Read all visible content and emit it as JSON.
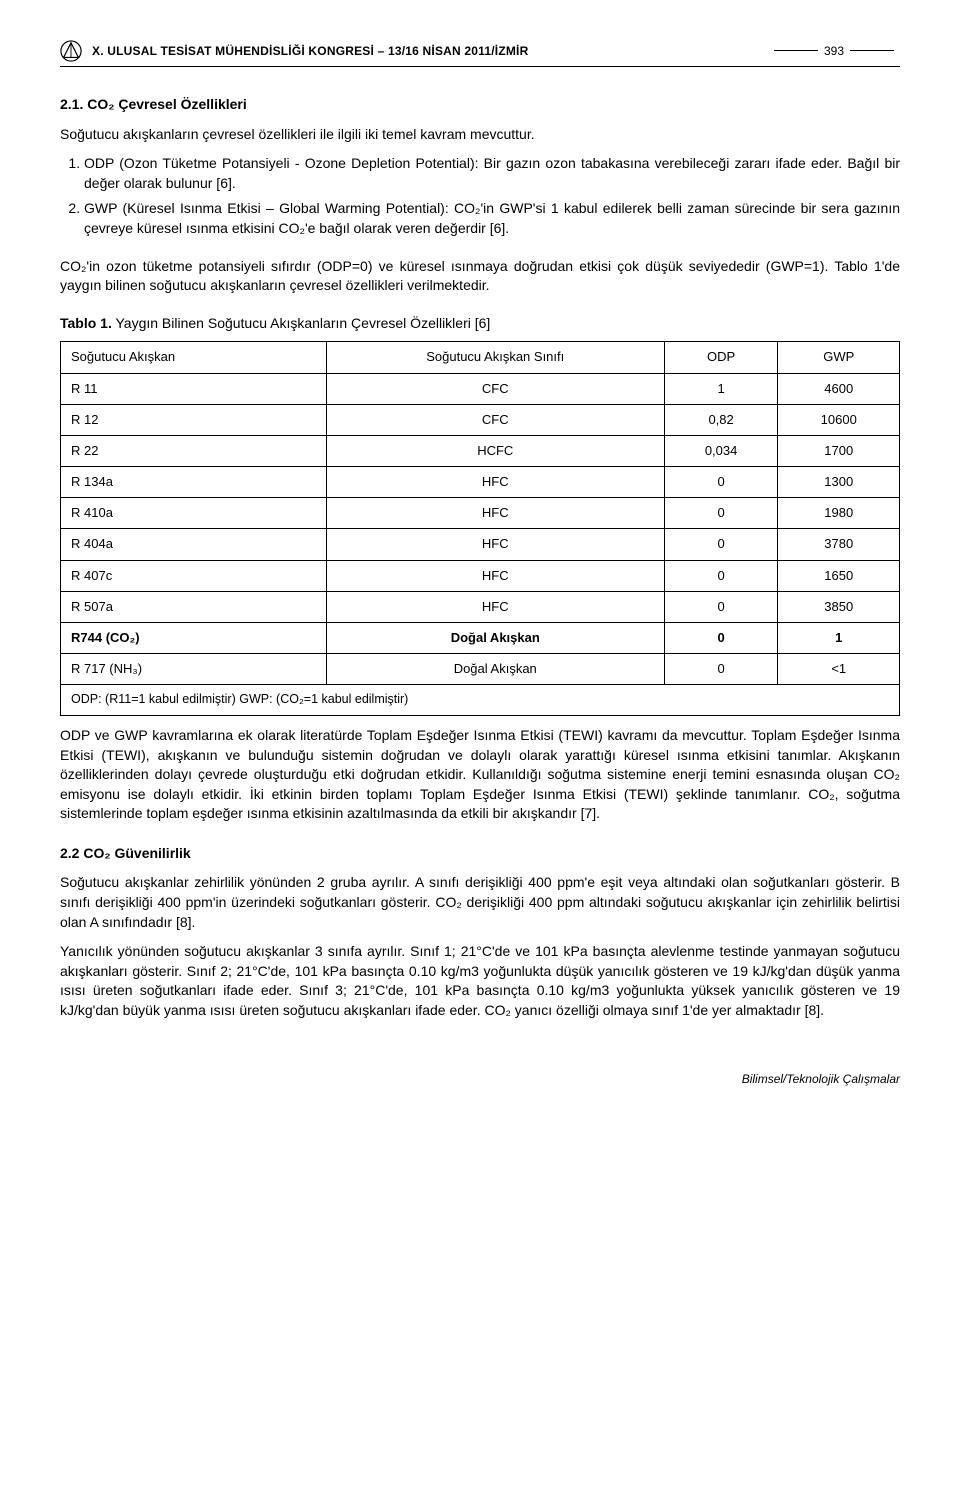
{
  "header": {
    "symposium": "X. ULUSAL TESİSAT MÜHENDİSLİĞİ KONGRESİ – 13/16 NİSAN 2011/İZMİR",
    "page_number": "393"
  },
  "sections": {
    "s21_title": "2.1. CO₂ Çevresel Özellikleri",
    "s21_intro": "Soğutucu akışkanların çevresel özellikleri ile ilgili iki temel kavram mevcuttur.",
    "s21_li1": "ODP (Ozon Tüketme Potansiyeli - Ozone Depletion Potential): Bir gazın ozon tabakasına verebileceği zararı ifade eder. Bağıl bir değer olarak bulunur [6].",
    "s21_li2": "GWP (Küresel Isınma Etkisi – Global Warming Potential): CO₂'in GWP'si 1 kabul edilerek belli zaman sürecinde bir sera gazının çevreye küresel ısınma etkisini CO₂'e bağıl olarak veren değerdir [6].",
    "s21_p2": "CO₂'in ozon tüketme potansiyeli sıfırdır (ODP=0) ve küresel ısınmaya doğrudan etkisi çok düşük seviyededir (GWP=1). Tablo 1'de yaygın bilinen soğutucu akışkanların çevresel özellikleri verilmektedir.",
    "table1_caption_bold": "Tablo 1.",
    "table1_caption_rest": " Yaygın Bilinen Soğutucu Akışkanların Çevresel Özellikleri [6]",
    "s21_p3": "ODP ve GWP kavramlarına ek olarak literatürde Toplam Eşdeğer Isınma Etkisi (TEWI) kavramı da mevcuttur. Toplam Eşdeğer Isınma Etkisi (TEWI), akışkanın ve bulunduğu sistemin doğrudan ve dolaylı olarak yarattığı küresel ısınma etkisini tanımlar. Akışkanın özelliklerinden dolayı çevrede oluşturduğu etki doğrudan etkidir. Kullanıldığı soğutma sistemine enerji temini esnasında oluşan CO₂ emisyonu ise dolaylı etkidir. İki etkinin birden toplamı Toplam Eşdeğer Isınma Etkisi (TEWI) şeklinde tanımlanır. CO₂, soğutma sistemlerinde toplam eşdeğer ısınma etkisinin azaltılmasında da etkili bir akışkandır [7].",
    "s22_title": "2.2 CO₂ Güvenilirlik",
    "s22_p1": "Soğutucu akışkanlar zehirlilik yönünden 2 gruba ayrılır. A sınıfı derişikliği 400 ppm'e eşit veya altındaki olan soğutkanları gösterir. B sınıfı derişikliği 400 ppm'in üzerindeki soğutkanları gösterir. CO₂ derişikliği 400 ppm altındaki soğutucu akışkanlar için zehirlilik belirtisi olan A sınıfındadır [8].",
    "s22_p2": "Yanıcılık yönünden soğutucu akışkanlar 3 sınıfa ayrılır. Sınıf 1; 21°C'de ve 101 kPa basınçta alevlenme testinde yanmayan soğutucu akışkanları gösterir. Sınıf 2; 21°C'de, 101 kPa basınçta 0.10 kg/m3 yoğunlukta düşük yanıcılık gösteren ve 19 kJ/kg'dan düşük yanma ısısı üreten soğutkanları ifade eder. Sınıf 3; 21°C'de, 101 kPa basınçta 0.10 kg/m3 yoğunlukta yüksek yanıcılık gösteren ve 19 kJ/kg'dan büyük yanma ısısı üreten soğutucu akışkanları ifade eder. CO₂ yanıcı özelliği olmaya sınıf 1'de yer almaktadır [8]."
  },
  "table1": {
    "columns": [
      "Soğutucu Akışkan",
      "Soğutucu Akışkan Sınıfı",
      "ODP",
      "GWP"
    ],
    "rows": [
      [
        "R 11",
        "CFC",
        "1",
        "4600"
      ],
      [
        "R 12",
        "CFC",
        "0,82",
        "10600"
      ],
      [
        "R 22",
        "HCFC",
        "0,034",
        "1700"
      ],
      [
        "R 134a",
        "HFC",
        "0",
        "1300"
      ],
      [
        "R 410a",
        "HFC",
        "0",
        "1980"
      ],
      [
        "R 404a",
        "HFC",
        "0",
        "3780"
      ],
      [
        "R 407c",
        "HFC",
        "0",
        "1650"
      ],
      [
        "R 507a",
        "HFC",
        "0",
        "3850"
      ],
      [
        "R744 (CO₂)",
        "Doğal Akışkan",
        "0",
        "1"
      ],
      [
        "R 717 (NH₃)",
        "Doğal Akışkan",
        "0",
        "<1"
      ]
    ],
    "bold_rows": [
      8
    ],
    "footnote": "ODP: (R11=1 kabul edilmiştir) GWP: (CO₂=1 kabul edilmiştir)"
  },
  "footer": "Bilimsel/Teknolojik Çalışmalar",
  "colors": {
    "text": "#000000",
    "background": "#ffffff",
    "border": "#000000"
  }
}
